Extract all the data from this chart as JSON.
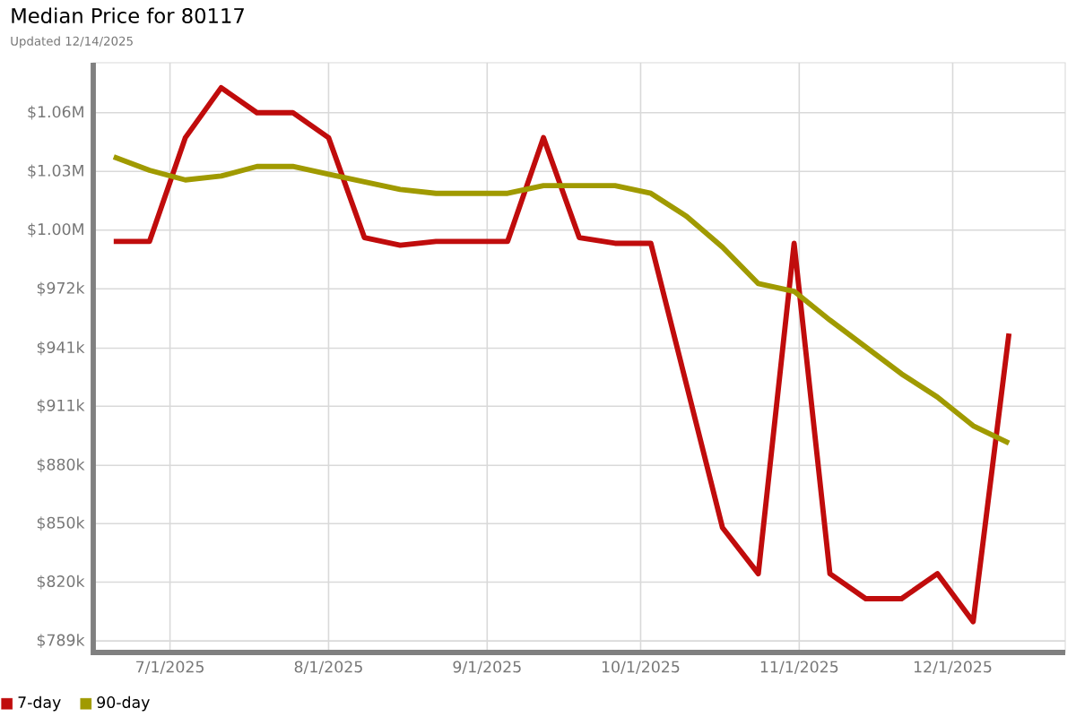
{
  "chart_data": {
    "type": "line",
    "title": "Median Price for 80117",
    "subtitle": "Updated 12/14/2025",
    "x": [
      "2025-06-20",
      "2025-06-27",
      "2025-07-04",
      "2025-07-11",
      "2025-07-18",
      "2025-07-25",
      "2025-08-01",
      "2025-08-08",
      "2025-08-15",
      "2025-08-22",
      "2025-08-29",
      "2025-09-05",
      "2025-09-12",
      "2025-09-19",
      "2025-09-26",
      "2025-10-03",
      "2025-10-10",
      "2025-10-17",
      "2025-10-24",
      "2025-10-31",
      "2025-11-07",
      "2025-11-14",
      "2025-11-21",
      "2025-11-28",
      "2025-12-05",
      "2025-12-12"
    ],
    "series": [
      {
        "name": "7-day",
        "color": "#c00c0c",
        "values": [
          997000,
          997000,
          1051000,
          1077000,
          1064000,
          1064000,
          1051000,
          999000,
          995000,
          997000,
          997000,
          997000,
          1051000,
          999000,
          996000,
          996000,
          922000,
          848000,
          824000,
          996000,
          824000,
          811000,
          811000,
          824000,
          799000,
          949000
        ]
      },
      {
        "name": "90-day",
        "color": "#a09a00",
        "values": [
          1041000,
          1034000,
          1029000,
          1031000,
          1036000,
          1036000,
          1032000,
          1028000,
          1024000,
          1022000,
          1022000,
          1022000,
          1026000,
          1026000,
          1026000,
          1022000,
          1010000,
          994000,
          975000,
          971000,
          956000,
          942000,
          928000,
          916000,
          901000,
          892000
        ]
      }
    ],
    "xlim": [
      "2025-06-16",
      "2025-12-23"
    ],
    "xticks": [
      {
        "value": "2025-07-01",
        "label": "7/1/2025"
      },
      {
        "value": "2025-08-01",
        "label": "8/1/2025"
      },
      {
        "value": "2025-09-01",
        "label": "9/1/2025"
      },
      {
        "value": "2025-10-01",
        "label": "10/1/2025"
      },
      {
        "value": "2025-11-01",
        "label": "11/1/2025"
      },
      {
        "value": "2025-12-01",
        "label": "12/1/2025"
      }
    ],
    "ylim": [
      783000,
      1090000
    ],
    "yticks": [
      {
        "value": 789000,
        "label": "$789k"
      },
      {
        "value": 819600,
        "label": "$820k"
      },
      {
        "value": 850100,
        "label": "$850k"
      },
      {
        "value": 880400,
        "label": "$880k"
      },
      {
        "value": 911200,
        "label": "$911k"
      },
      {
        "value": 941400,
        "label": "$941k"
      },
      {
        "value": 972300,
        "label": "$972k"
      },
      {
        "value": 1002900,
        "label": "$1.00M"
      },
      {
        "value": 1033400,
        "label": "$1.03M"
      },
      {
        "value": 1064000,
        "label": "$1.06M"
      }
    ],
    "grid": true,
    "legend": "bottom left",
    "line_style": "solid",
    "marker": "none"
  }
}
